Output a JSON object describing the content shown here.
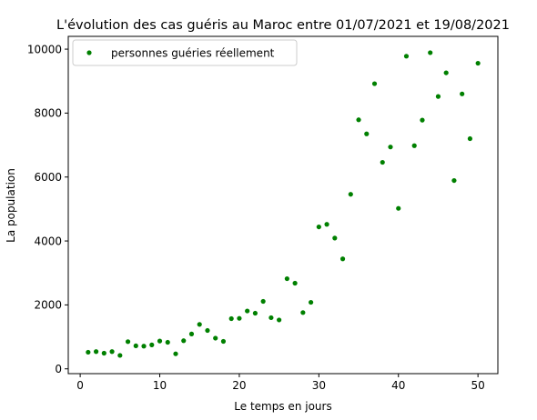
{
  "chart_data": {
    "type": "scatter",
    "title": "L'évolution des cas guéris au Maroc entre 01/07/2021 et 19/08/2021",
    "xlabel": "Le temps en jours",
    "ylabel": "La population",
    "xlim": [
      -1.5,
      52.5
    ],
    "ylim": [
      -150,
      10400
    ],
    "xticks": [
      0,
      10,
      20,
      30,
      40,
      50
    ],
    "yticks": [
      0,
      2000,
      4000,
      6000,
      8000,
      10000
    ],
    "legend_position": "top-left",
    "grid": false,
    "series": [
      {
        "name": "personnes guéries réellement",
        "color": "#008000",
        "marker": "dot",
        "x": [
          1,
          2,
          3,
          4,
          5,
          6,
          7,
          8,
          9,
          10,
          11,
          12,
          13,
          14,
          15,
          16,
          17,
          18,
          19,
          20,
          21,
          22,
          23,
          24,
          25,
          26,
          27,
          28,
          29,
          30,
          31,
          32,
          33,
          34,
          35,
          36,
          37,
          38,
          39,
          40,
          41,
          42,
          43,
          44,
          45,
          46,
          47,
          48,
          49,
          50
        ],
        "y": [
          520,
          540,
          490,
          540,
          420,
          850,
          720,
          710,
          750,
          870,
          830,
          470,
          880,
          1090,
          1390,
          1200,
          960,
          860,
          1570,
          1580,
          1810,
          1740,
          2110,
          1600,
          1530,
          2820,
          2680,
          1760,
          2080,
          4440,
          4520,
          4090,
          3440,
          5460,
          7790,
          7350,
          8920,
          6460,
          6940,
          5020,
          9780,
          6980,
          7780,
          9890,
          8520,
          9260,
          5890,
          8600,
          7200,
          9560
        ]
      }
    ]
  }
}
